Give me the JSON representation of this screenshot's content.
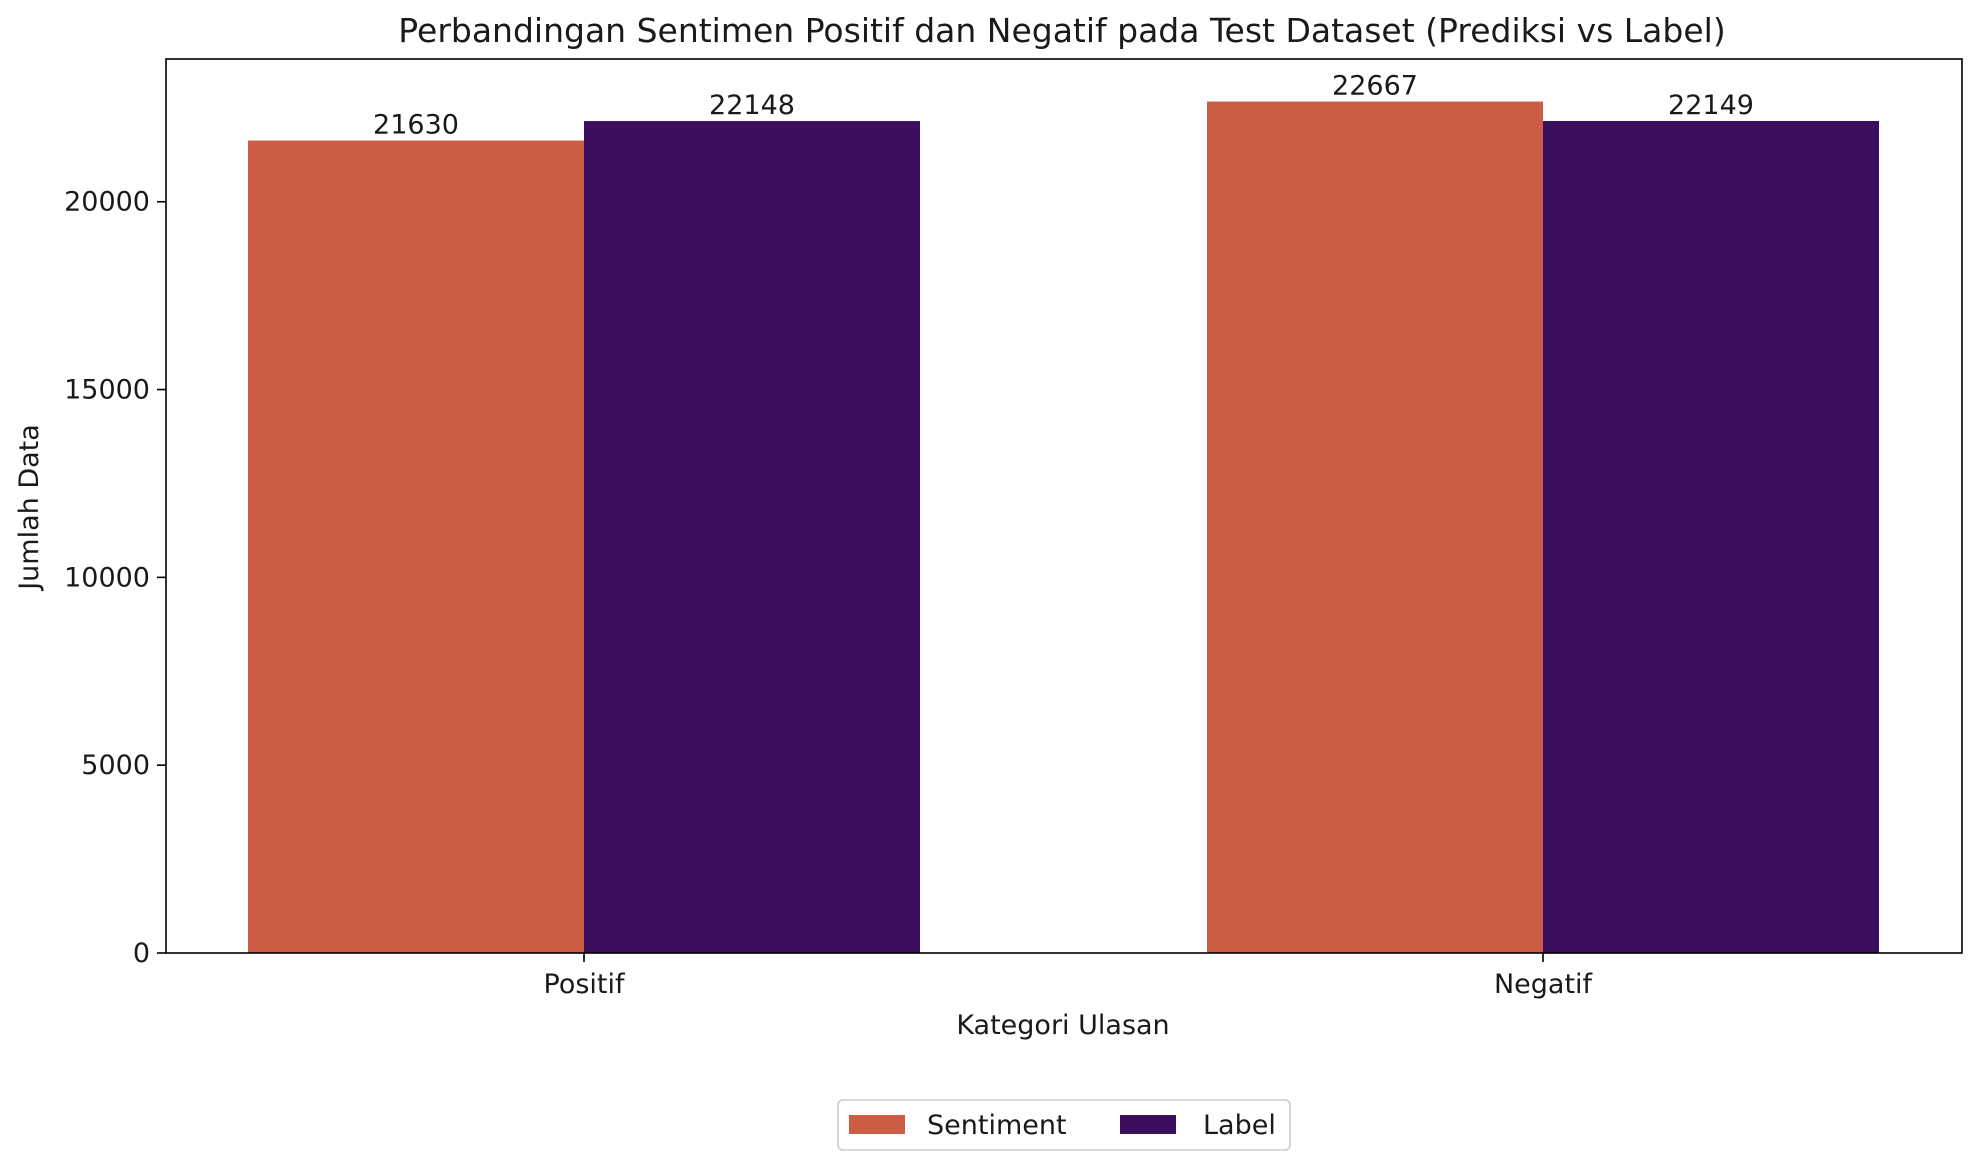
{
  "chart_data": {
    "type": "bar",
    "title": "Perbandingan Sentimen Positif dan Negatif pada Test Dataset (Prediksi vs Label)",
    "xlabel": "Kategori Ulasan",
    "ylabel": "Jumlah Data",
    "categories": [
      "Positif",
      "Negatif"
    ],
    "series": [
      {
        "name": "Sentiment",
        "values": [
          21630,
          22667
        ],
        "color": "#cc5c43"
      },
      {
        "name": "Label",
        "values": [
          22148,
          22149
        ],
        "color": "#3c0f5e"
      }
    ],
    "ylim": [
      0,
      23800
    ],
    "yticks": [
      0,
      5000,
      10000,
      15000,
      20000
    ],
    "ytick_labels": [
      "0",
      "5000",
      "10000",
      "15000",
      "20000"
    ],
    "data_labels": [
      [
        "21630",
        "22667"
      ],
      [
        "22148",
        "22149"
      ]
    ],
    "grid": false,
    "legend_position": "bottom-center"
  }
}
